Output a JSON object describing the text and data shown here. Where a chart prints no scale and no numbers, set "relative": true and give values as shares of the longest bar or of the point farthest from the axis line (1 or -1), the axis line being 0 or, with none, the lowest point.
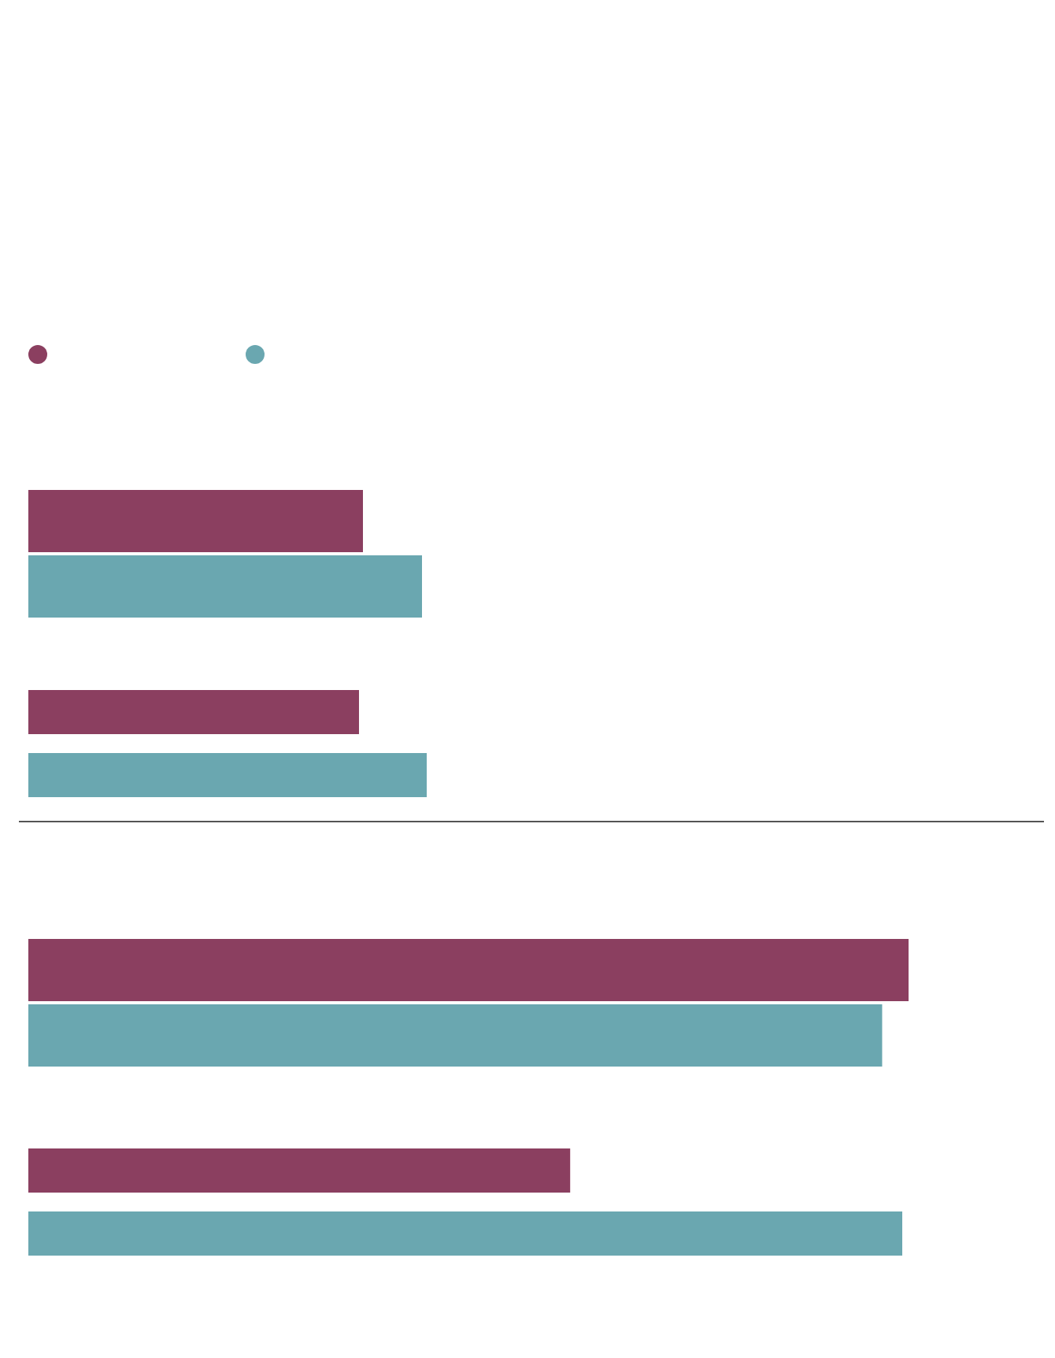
{
  "chart_data": [
    {
      "type": "bar",
      "orientation": "horizontal",
      "relative": true,
      "categories": [
        null,
        null
      ],
      "values": [
        0.85,
        1
      ],
      "colors": [
        "#8b3f60",
        "#6aa7b0"
      ]
    },
    {
      "type": "bar",
      "orientation": "horizontal",
      "relative": true,
      "categories": [
        null,
        null
      ],
      "values": [
        0.83,
        1
      ],
      "colors": [
        "#8b3f60",
        "#6aa7b0"
      ]
    },
    {
      "type": "bar",
      "orientation": "horizontal",
      "relative": true,
      "categories": [
        null,
        null
      ],
      "values": [
        1,
        0.97
      ],
      "colors": [
        "#8b3f60",
        "#6aa7b0"
      ]
    },
    {
      "type": "bar",
      "orientation": "horizontal",
      "relative": true,
      "categories": [
        null,
        null
      ],
      "values": [
        0.62,
        1
      ],
      "colors": [
        "#8b3f60",
        "#6aa7b0"
      ]
    }
  ]
}
